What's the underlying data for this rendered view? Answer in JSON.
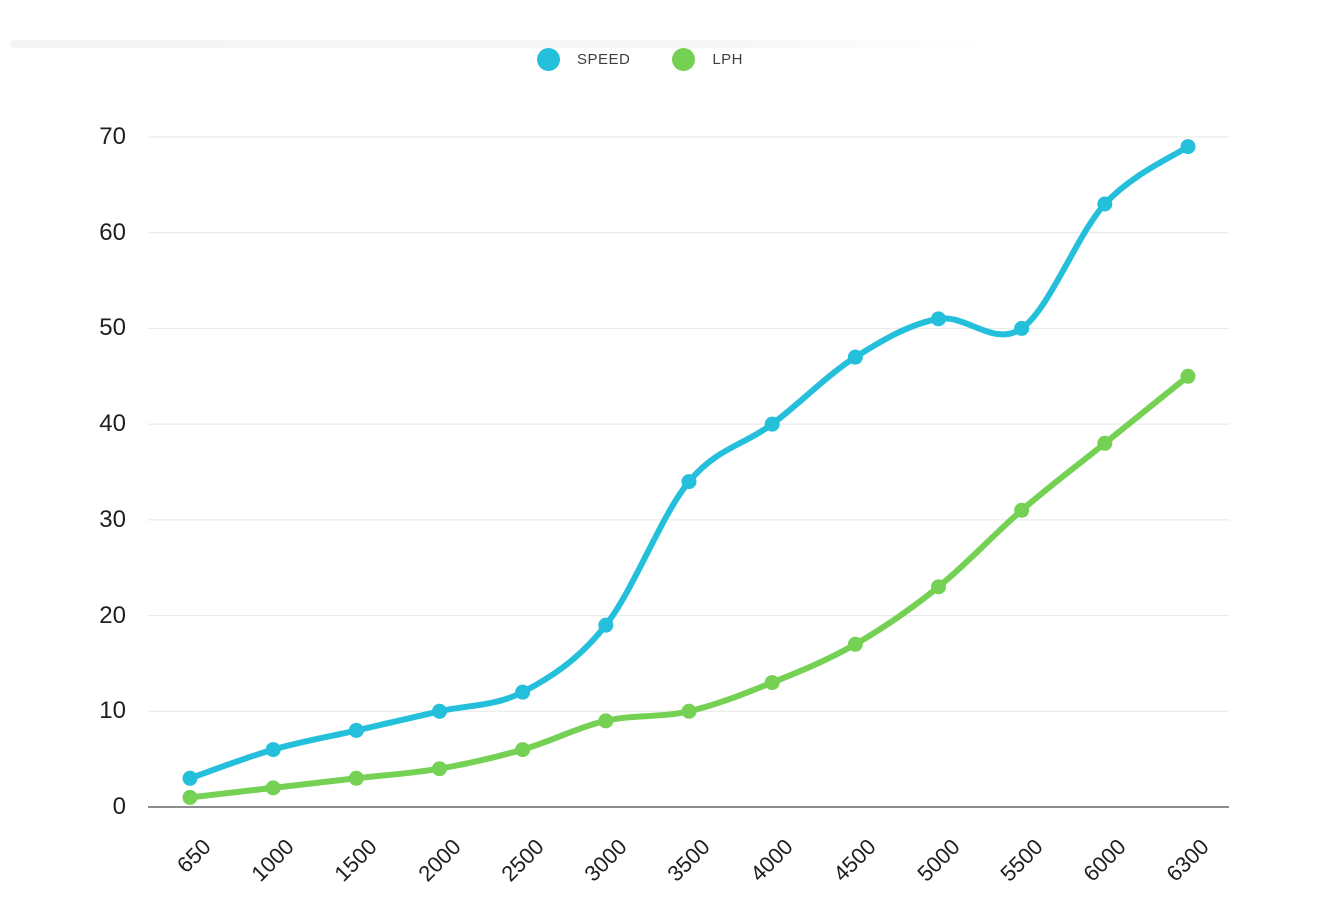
{
  "legend": {
    "items": [
      {
        "label": "SPEED",
        "color": "#24bfda"
      },
      {
        "label": "LPH",
        "color": "#74d153"
      }
    ]
  },
  "colors": {
    "speed_line": "#24bfda",
    "lph_line": "#74d153",
    "gridline": "#e7e7e7",
    "axis_line": "#8c8c8c",
    "tick_text": "#1f1f1f",
    "legend_text": "#3f3f3f",
    "background": "#ffffff"
  },
  "chart_data": {
    "type": "line",
    "title": "",
    "xlabel": "",
    "ylabel": "",
    "categories": [
      "650",
      "1000",
      "1500",
      "2000",
      "2500",
      "3000",
      "3500",
      "4000",
      "4500",
      "5000",
      "5500",
      "6000",
      "6300"
    ],
    "series": [
      {
        "name": "SPEED",
        "color": "#24bfda",
        "values": [
          3,
          6,
          8,
          10,
          12,
          19,
          34,
          40,
          47,
          51,
          50,
          63,
          69
        ]
      },
      {
        "name": "LPH",
        "color": "#74d153",
        "values": [
          1,
          2,
          3,
          4,
          6,
          9,
          10,
          13,
          17,
          23,
          31,
          38,
          45
        ]
      }
    ],
    "ylim": [
      0,
      70
    ],
    "yticks": [
      0,
      10,
      20,
      30,
      40,
      50,
      60,
      70
    ],
    "grid": true,
    "smooth_curves": true,
    "point_markers": true,
    "legend_position": "top",
    "x_tick_rotation_deg": -45
  }
}
